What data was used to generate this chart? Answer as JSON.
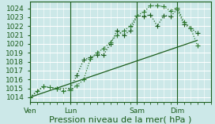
{
  "background_color": "#cce8e8",
  "grid_color": "#ffffff",
  "xlabel": "Pression niveau de la mer( hPa )",
  "ylim": [
    1013.5,
    1024.8
  ],
  "yticks": [
    1014,
    1015,
    1016,
    1017,
    1018,
    1019,
    1020,
    1021,
    1022,
    1023,
    1024
  ],
  "xtick_labels": [
    "Ven",
    "Lun",
    "Sam",
    "Dim"
  ],
  "xtick_positions": [
    0,
    3,
    8,
    11
  ],
  "xlim": [
    0,
    13.5
  ],
  "dark_green": "#1a5c1a",
  "mid_green": "#2d7a2d",
  "line1_x": [
    0,
    0.5,
    1,
    1.5,
    2,
    2.5,
    3,
    3.5,
    4,
    4.5,
    5,
    5.5,
    6,
    6.5,
    7,
    7.5,
    8,
    8.5,
    9,
    9.5,
    10,
    10.5,
    11,
    11.5,
    12,
    12.5
  ],
  "line1_y": [
    1014.0,
    1014.7,
    1015.2,
    1015.1,
    1015.0,
    1014.7,
    1014.8,
    1015.3,
    1016.0,
    1018.3,
    1019.0,
    1019.5,
    1020.2,
    1021.0,
    1021.5,
    1022.0,
    1023.2,
    1023.6,
    1024.3,
    1024.3,
    1024.2,
    1023.7,
    1024.1,
    1022.5,
    1021.8,
    1019.8
  ],
  "line2_x": [
    0,
    1,
    2,
    3,
    3.5,
    4,
    4.5,
    5,
    5.5,
    6,
    6.5,
    7,
    7.5,
    8,
    8.5,
    9,
    9.5,
    10,
    10.5,
    11,
    11.5,
    12,
    12.5
  ],
  "line2_y": [
    1014.0,
    1015.2,
    1015.0,
    1015.0,
    1016.5,
    1018.2,
    1018.5,
    1018.8,
    1018.8,
    1020.0,
    1021.5,
    1021.0,
    1021.5,
    1023.2,
    1023.1,
    1023.3,
    1022.0,
    1023.2,
    1023.1,
    1023.9,
    1022.2,
    1021.8,
    1021.2
  ],
  "line3_x": [
    0,
    12.5
  ],
  "line3_y": [
    1014.0,
    1020.4
  ],
  "marker_size": 2.5,
  "linewidth": 0.9,
  "tick_fontsize": 6.5,
  "xlabel_fontsize": 8
}
